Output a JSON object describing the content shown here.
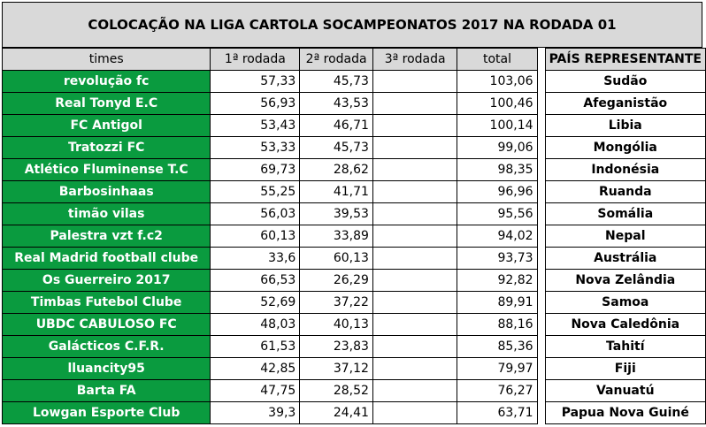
{
  "title": "COLOCAÇÃO NA LIGA CARTOLA SOCAMPEONATOS 2017 NA RODADA 01",
  "headers": {
    "times": "times",
    "r1": "1ª rodada",
    "r2": "2ª rodada",
    "r3": "3ª rodada",
    "total": "total",
    "country": "PAÍS REPRESENTANTE"
  },
  "rows": [
    {
      "team": "revolução fc",
      "r1": "57,33",
      "r2": "45,73",
      "r3": "",
      "total": "103,06",
      "country": "Sudão"
    },
    {
      "team": "Real Tonyd E.C",
      "r1": "56,93",
      "r2": "43,53",
      "r3": "",
      "total": "100,46",
      "country": "Afeganistão"
    },
    {
      "team": "FC Antigol",
      "r1": "53,43",
      "r2": "46,71",
      "r3": "",
      "total": "100,14",
      "country": "Libia"
    },
    {
      "team": "Tratozzi FC",
      "r1": "53,33",
      "r2": "45,73",
      "r3": "",
      "total": "99,06",
      "country": "Mongólia"
    },
    {
      "team": "Atlético Fluminense T.C",
      "r1": "69,73",
      "r2": "28,62",
      "r3": "",
      "total": "98,35",
      "country": "Indonésia"
    },
    {
      "team": "Barbosinhaas",
      "r1": "55,25",
      "r2": "41,71",
      "r3": "",
      "total": "96,96",
      "country": "Ruanda"
    },
    {
      "team": "timão vilas",
      "r1": "56,03",
      "r2": "39,53",
      "r3": "",
      "total": "95,56",
      "country": "Somália"
    },
    {
      "team": "Palestra vzt f.c2",
      "r1": "60,13",
      "r2": "33,89",
      "r3": "",
      "total": "94,02",
      "country": "Nepal"
    },
    {
      "team": "Real Madrid football clube",
      "r1": "33,6",
      "r2": "60,13",
      "r3": "",
      "total": "93,73",
      "country": "Austrália"
    },
    {
      "team": "Os Guerreiro 2017",
      "r1": "66,53",
      "r2": "26,29",
      "r3": "",
      "total": "92,82",
      "country": "Nova Zelândia"
    },
    {
      "team": "Timbas Futebol Clube",
      "r1": "52,69",
      "r2": "37,22",
      "r3": "",
      "total": "89,91",
      "country": "Samoa"
    },
    {
      "team": "UBDC CABULOSO FC",
      "r1": "48,03",
      "r2": "40,13",
      "r3": "",
      "total": "88,16",
      "country": "Nova Caledônia"
    },
    {
      "team": "Galácticos C.F.R.",
      "r1": "61,53",
      "r2": "23,83",
      "r3": "",
      "total": "85,36",
      "country": "Tahití"
    },
    {
      "team": "lluancity95",
      "r1": "42,85",
      "r2": "37,12",
      "r3": "",
      "total": "79,97",
      "country": "Fiji"
    },
    {
      "team": "Barta FA",
      "r1": "47,75",
      "r2": "28,52",
      "r3": "",
      "total": "76,27",
      "country": "Vanuatú"
    },
    {
      "team": "Lowgan Esporte Club",
      "r1": "39,3",
      "r2": "24,41",
      "r3": "",
      "total": "63,71",
      "country": "Papua Nova Guiné"
    }
  ]
}
